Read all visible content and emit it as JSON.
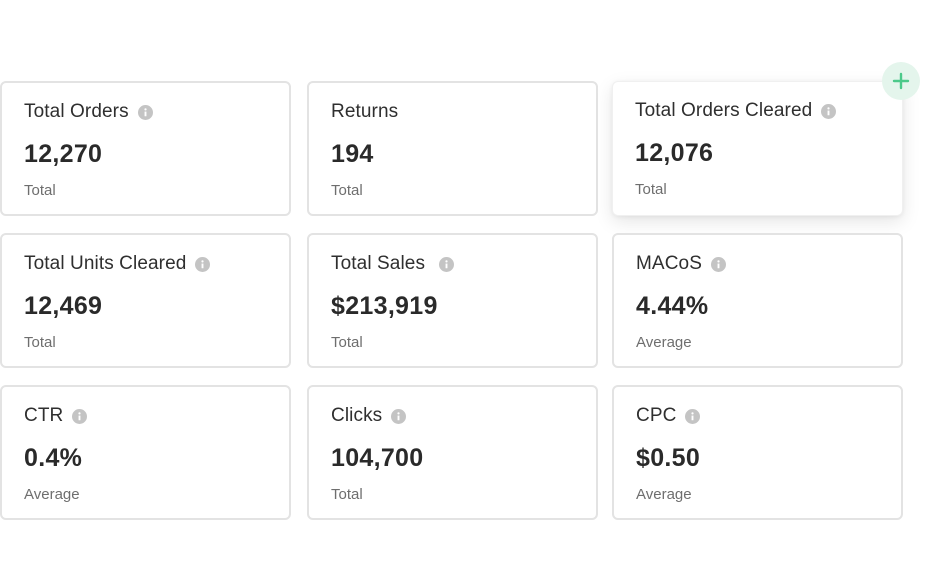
{
  "add_button": {
    "icon": "plus-icon",
    "color": "#4cc98a"
  },
  "cards": [
    {
      "title": "Total Orders",
      "value": "12,270",
      "sub": "Total",
      "info": true
    },
    {
      "title": "Returns",
      "value": "194",
      "sub": "Total",
      "info": false
    },
    {
      "title": "Total Orders Cleared",
      "value": "12,076",
      "sub": "Total",
      "info": true
    },
    {
      "title": "Total Units Cleared",
      "value": "12,469",
      "sub": "Total",
      "info": true
    },
    {
      "title": "Total Sales",
      "value": "$213,919",
      "sub": "Total",
      "info": true
    },
    {
      "title": "MACoS",
      "value": "4.44%",
      "sub": "Average",
      "info": true
    },
    {
      "title": "CTR",
      "value": "0.4%",
      "sub": "Average",
      "info": true
    },
    {
      "title": "Clicks",
      "value": "104,700",
      "sub": "Total",
      "info": true
    },
    {
      "title": "CPC",
      "value": "$0.50",
      "sub": "Average",
      "info": true
    }
  ]
}
